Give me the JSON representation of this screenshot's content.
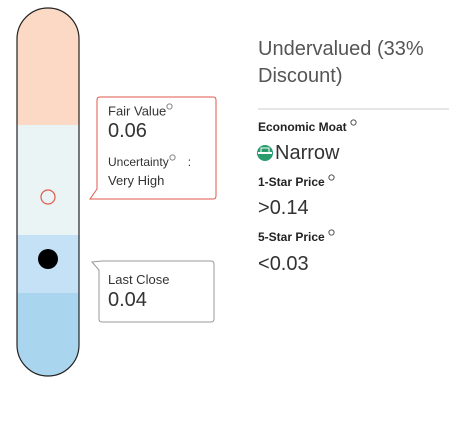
{
  "fair_value": {
    "label": "Fair Value",
    "value": "0.06",
    "uncertainty_label": "Uncertainty",
    "separator": ":",
    "uncertainty": "Very High"
  },
  "last_close": {
    "label": "Last Close",
    "value": "0.04"
  },
  "summary": {
    "status": "Undervalued (33% Discount)",
    "moat_label": "Economic Moat",
    "moat": "Narrow",
    "one_star_label": "1-Star Price",
    "one_star_sign": ">",
    "one_star_price": "0.14",
    "five_star_label": "5-Star Price",
    "five_star_sign": "<",
    "five_star_price": "0.03"
  }
}
